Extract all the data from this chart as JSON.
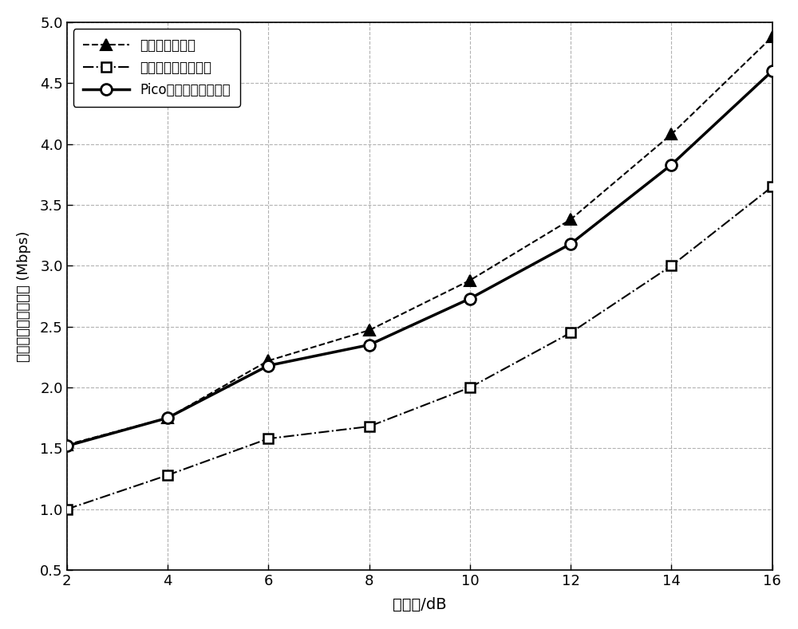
{
  "x": [
    2,
    4,
    6,
    8,
    10,
    12,
    14,
    16
  ],
  "series1_y": [
    1.53,
    1.75,
    2.22,
    2.47,
    2.88,
    3.38,
    4.08,
    4.88
  ],
  "series2_y": [
    1.0,
    1.28,
    1.58,
    1.68,
    2.0,
    2.45,
    3.0,
    3.65
  ],
  "series3_y": [
    1.52,
    1.75,
    2.18,
    2.35,
    2.73,
    3.18,
    3.83,
    4.6
  ],
  "series1_label": "无干扰管理方法",
  "series2_label": "宏基站功率降低方法",
  "series3_label": "Pico基站功率提高方法",
  "xlabel": "偏置值/dB",
  "ylabel": "宏用户的平均吞吐量 (Mbps)",
  "xlim": [
    2,
    16
  ],
  "ylim": [
    0.5,
    5.0
  ],
  "xticks": [
    2,
    4,
    6,
    8,
    10,
    12,
    14,
    16
  ],
  "yticks": [
    0.5,
    1.0,
    1.5,
    2.0,
    2.5,
    3.0,
    3.5,
    4.0,
    4.5,
    5.0
  ],
  "background_color": "#ffffff",
  "grid_color": "#aaaaaa"
}
